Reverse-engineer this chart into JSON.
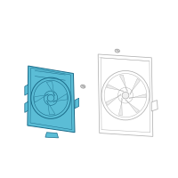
{
  "bg_color": "#ffffff",
  "shroud_fill": "#5bbdd6",
  "shroud_stroke": "#1a6a88",
  "outline_stroke": "#b0b0b0",
  "screw_color": "#999999",
  "fig_width": 2.0,
  "fig_height": 2.0,
  "dpi": 100
}
